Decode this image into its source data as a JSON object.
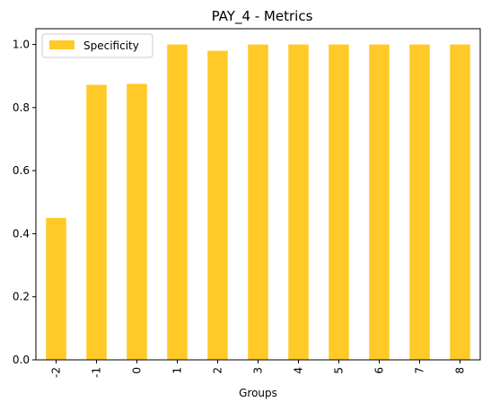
{
  "chart_data": {
    "type": "bar",
    "title": "PAY_4 - Metrics",
    "xlabel": "Groups",
    "ylabel": "",
    "categories": [
      "-2",
      "-1",
      "0",
      "1",
      "2",
      "3",
      "4",
      "5",
      "6",
      "7",
      "8"
    ],
    "series": [
      {
        "name": "Specificity",
        "color": "#FFC927",
        "values": [
          0.45,
          0.872,
          0.875,
          1.0,
          0.98,
          1.0,
          1.0,
          1.0,
          1.0,
          1.0,
          1.0
        ]
      }
    ],
    "ylim": [
      0,
      1.05
    ],
    "yticks": [
      "0.0",
      "0.2",
      "0.4",
      "0.6",
      "0.8",
      "1.0"
    ],
    "grid": false,
    "legend_position": "top-left"
  }
}
